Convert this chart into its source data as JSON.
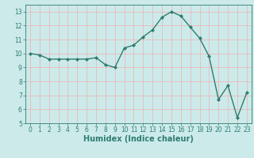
{
  "x": [
    0,
    1,
    2,
    3,
    4,
    5,
    6,
    7,
    8,
    9,
    10,
    11,
    12,
    13,
    14,
    15,
    16,
    17,
    18,
    19,
    20,
    21,
    22,
    23
  ],
  "y": [
    10.0,
    9.9,
    9.6,
    9.6,
    9.6,
    9.6,
    9.6,
    9.7,
    9.2,
    9.0,
    10.4,
    10.6,
    11.2,
    11.7,
    12.6,
    13.0,
    12.7,
    11.9,
    11.1,
    9.8,
    6.7,
    7.7,
    5.4,
    7.2
  ],
  "line_color": "#2e7d6e",
  "marker": "D",
  "marker_size": 2.0,
  "bg_color": "#cceaea",
  "grid_color": "#f0b0b0",
  "xlabel": "Humidex (Indice chaleur)",
  "xlabel_fontsize": 7,
  "xlim": [
    -0.5,
    23.5
  ],
  "ylim": [
    5,
    13.5
  ],
  "yticks": [
    5,
    6,
    7,
    8,
    9,
    10,
    11,
    12,
    13
  ],
  "xticks": [
    0,
    1,
    2,
    3,
    4,
    5,
    6,
    7,
    8,
    9,
    10,
    11,
    12,
    13,
    14,
    15,
    16,
    17,
    18,
    19,
    20,
    21,
    22,
    23
  ],
  "tick_fontsize": 5.5,
  "line_width": 1.0
}
